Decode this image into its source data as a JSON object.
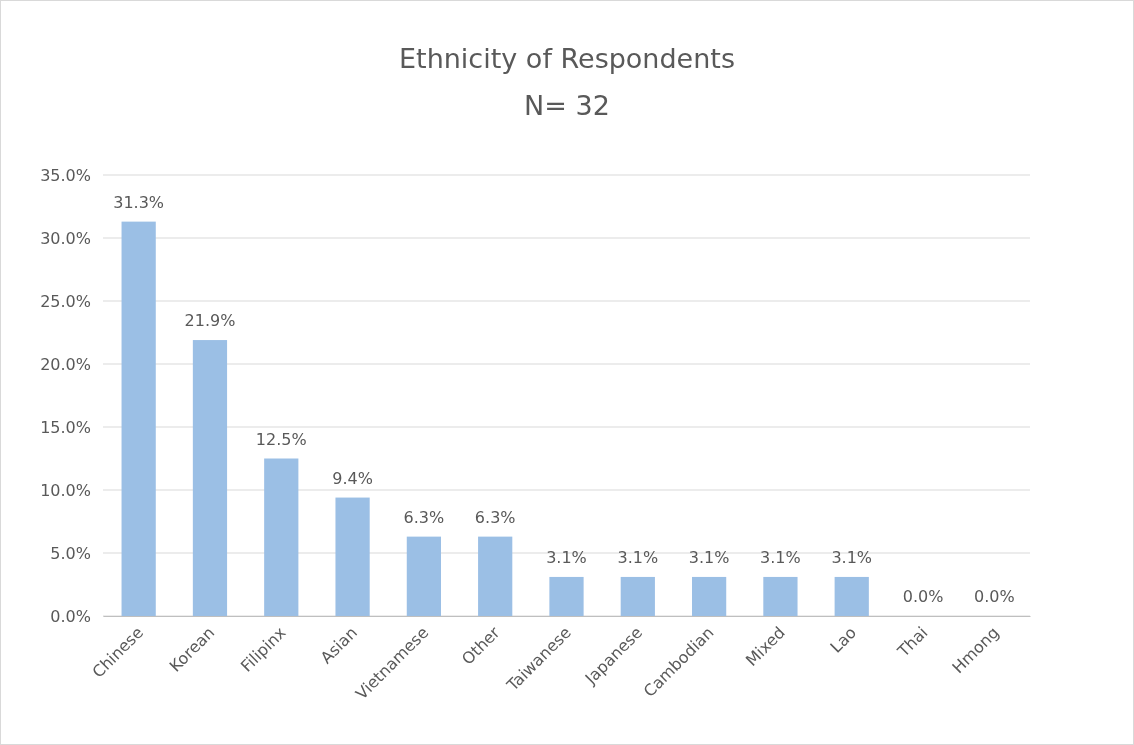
{
  "chart_data": {
    "type": "bar",
    "title": "Ethnicity of Respondents",
    "subtitle": "N= 32",
    "categories": [
      "Chinese",
      "Korean",
      "Filipinx",
      "Asian",
      "Vietnamese",
      "Other",
      "Taiwanese",
      "Japanese",
      "Cambodian",
      "Mixed",
      "Lao",
      "Thai",
      "Hmong"
    ],
    "values": [
      31.3,
      21.9,
      12.5,
      9.4,
      6.3,
      6.3,
      3.1,
      3.1,
      3.1,
      3.1,
      3.1,
      0,
      0
    ],
    "value_labels": [
      "31.3%",
      "21.9%",
      "12.5%",
      "9.4%",
      "6.3%",
      "6.3%",
      "3.1%",
      "3.1%",
      "3.1%",
      "3.1%",
      "3.1%",
      "0.0%",
      "0.0%"
    ],
    "color": "#9bbfe5",
    "ylim": [
      0,
      35
    ],
    "yticks": [
      {
        "value": 0,
        "label": "0.0%"
      },
      {
        "value": 5,
        "label": "5.0%"
      },
      {
        "value": 10,
        "label": "10.0%"
      },
      {
        "value": 15,
        "label": "15.0%"
      },
      {
        "value": 20,
        "label": "20.0%"
      },
      {
        "value": 25,
        "label": "25.0%"
      },
      {
        "value": 30,
        "label": "30.0%"
      },
      {
        "value": 35,
        "label": "35.0%"
      }
    ],
    "grid": "y"
  }
}
